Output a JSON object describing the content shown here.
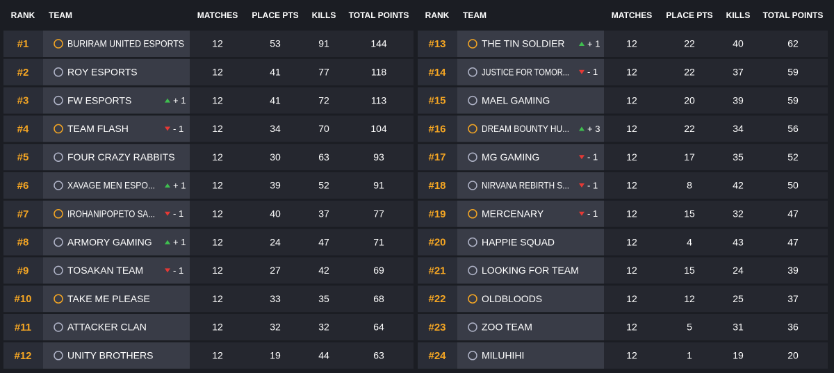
{
  "tables": [
    {
      "headers": [
        "RANK",
        "TEAM",
        "MATCHES",
        "PLACE PTS",
        "KILLS",
        "TOTAL POINTS"
      ],
      "rows": [
        {
          "rank": "#1",
          "team": "BURIRAM UNITED ESPORTS",
          "matches": 12,
          "place_pts": 53,
          "kills": 91,
          "total": 144
        },
        {
          "rank": "#2",
          "team": "ROY ESPORTS",
          "matches": 12,
          "place_pts": 41,
          "kills": 77,
          "total": 118
        },
        {
          "rank": "#3",
          "team": "FW ESPORTS",
          "change": "+ 1",
          "matches": 12,
          "place_pts": 41,
          "kills": 72,
          "total": 113
        },
        {
          "rank": "#4",
          "team": "TEAM FLASH",
          "change": "- 1",
          "matches": 12,
          "place_pts": 34,
          "kills": 70,
          "total": 104
        },
        {
          "rank": "#5",
          "team": "FOUR CRAZY RABBITS",
          "matches": 12,
          "place_pts": 30,
          "kills": 63,
          "total": 93
        },
        {
          "rank": "#6",
          "team": "XAVAGE MEN ESPO...",
          "change": "+ 1",
          "matches": 12,
          "place_pts": 39,
          "kills": 52,
          "total": 91
        },
        {
          "rank": "#7",
          "team": "IROHANIPOPETO SA...",
          "change": "- 1",
          "matches": 12,
          "place_pts": 40,
          "kills": 37,
          "total": 77
        },
        {
          "rank": "#8",
          "team": "ARMORY GAMING",
          "change": "+ 1",
          "matches": 12,
          "place_pts": 24,
          "kills": 47,
          "total": 71
        },
        {
          "rank": "#9",
          "team": "TOSAKAN TEAM",
          "change": "- 1",
          "matches": 12,
          "place_pts": 27,
          "kills": 42,
          "total": 69
        },
        {
          "rank": "#10",
          "team": "TAKE ME PLEASE",
          "matches": 12,
          "place_pts": 33,
          "kills": 35,
          "total": 68
        },
        {
          "rank": "#11",
          "team": "ATTACKER CLAN",
          "matches": 12,
          "place_pts": 32,
          "kills": 32,
          "total": 64
        },
        {
          "rank": "#12",
          "team": "UNITY BROTHERS",
          "matches": 12,
          "place_pts": 19,
          "kills": 44,
          "total": 63
        }
      ]
    },
    {
      "headers": [
        "RANK",
        "TEAM",
        "MATCHES",
        "PLACE PTS",
        "KILLS",
        "TOTAL POINTS"
      ],
      "rows": [
        {
          "rank": "#13",
          "team": "THE TIN SOLDIER",
          "change": "+ 1",
          "matches": 12,
          "place_pts": 22,
          "kills": 40,
          "total": 62
        },
        {
          "rank": "#14",
          "team": "JUSTICE FOR TOMOR...",
          "change": "- 1",
          "matches": 12,
          "place_pts": 22,
          "kills": 37,
          "total": 59
        },
        {
          "rank": "#15",
          "team": "MAEL GAMING",
          "matches": 12,
          "place_pts": 20,
          "kills": 39,
          "total": 59
        },
        {
          "rank": "#16",
          "team": "DREAM BOUNTY HU...",
          "change": "+ 3",
          "matches": 12,
          "place_pts": 22,
          "kills": 34,
          "total": 56
        },
        {
          "rank": "#17",
          "team": "MG GAMING",
          "change": "- 1",
          "matches": 12,
          "place_pts": 17,
          "kills": 35,
          "total": 52
        },
        {
          "rank": "#18",
          "team": "NIRVANA REBIRTH S...",
          "change": "- 1",
          "matches": 12,
          "place_pts": 8,
          "kills": 42,
          "total": 50
        },
        {
          "rank": "#19",
          "team": "MERCENARY",
          "change": "- 1",
          "matches": 12,
          "place_pts": 15,
          "kills": 32,
          "total": 47
        },
        {
          "rank": "#20",
          "team": "HAPPIE SQUAD",
          "matches": 12,
          "place_pts": 4,
          "kills": 43,
          "total": 47
        },
        {
          "rank": "#21",
          "team": "LOOKING FOR TEAM",
          "matches": 12,
          "place_pts": 15,
          "kills": 24,
          "total": 39
        },
        {
          "rank": "#22",
          "team": "OLDBLOODS",
          "matches": 12,
          "place_pts": 12,
          "kills": 25,
          "total": 37
        },
        {
          "rank": "#23",
          "team": "ZOO TEAM",
          "matches": 12,
          "place_pts": 5,
          "kills": 31,
          "total": 36
        },
        {
          "rank": "#24",
          "team": "MILUHIHI",
          "matches": 12,
          "place_pts": 1,
          "kills": 19,
          "total": 20
        }
      ]
    }
  ]
}
